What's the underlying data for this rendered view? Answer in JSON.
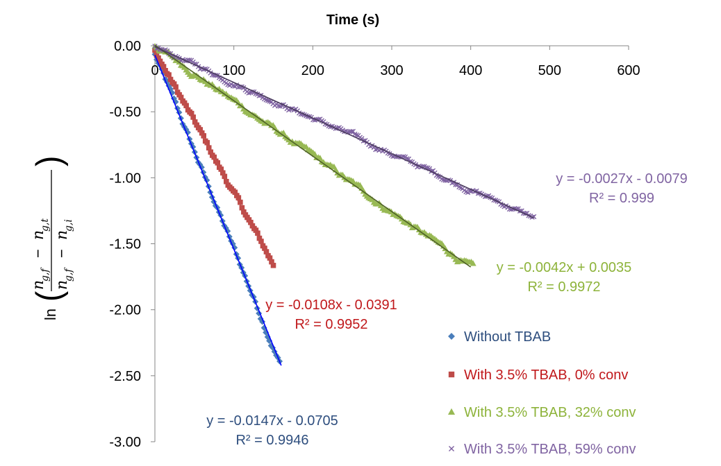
{
  "chart_data": {
    "type": "scatter",
    "title": "",
    "xlabel": "Time (s)",
    "ylabel": "ln((n_g,f − n_g,t)/(n_g,f − n_g,i))",
    "ylabel_math": {
      "func": "ln",
      "num_a": "n",
      "num_a_sub": "g,f",
      "num_op": "−",
      "num_b": "n",
      "num_b_sub": "g,t",
      "den_a": "n",
      "den_a_sub": "g,f",
      "den_op": "−",
      "den_b": "n",
      "den_b_sub": "g,i"
    },
    "x_axis": {
      "min": 0,
      "max": 600,
      "ticks": [
        0,
        100,
        200,
        300,
        400,
        500,
        600
      ],
      "tick_labels": [
        "0",
        "100",
        "200",
        "300",
        "400",
        "500",
        "600"
      ],
      "position": "top"
    },
    "y_axis": {
      "min": -3.0,
      "max": 0.0,
      "ticks": [
        0,
        -0.5,
        -1,
        -1.5,
        -2,
        -2.5,
        -3
      ],
      "tick_labels": [
        "0.00",
        "-0.50",
        "-1.00",
        "-1.50",
        "-2.00",
        "-2.50",
        "-3.00"
      ]
    },
    "grid": false,
    "legend_position": "bottom-right",
    "series": [
      {
        "name": "Without TBAB",
        "marker": "diamond",
        "color": "#4a7ebb",
        "x_range": [
          0,
          158
        ],
        "slope": -0.0147,
        "intercept": -0.0705,
        "noise": 0.035,
        "trendline": {
          "x": [
            0,
            160
          ],
          "color": "#0000ff",
          "equation": "y = -0.0147x - 0.0705",
          "r2": "R² = 0.9946",
          "label_color": "#2e4e7e"
        }
      },
      {
        "name": "With 3.5% TBAB, 0% conv",
        "marker": "square",
        "color": "#be4b48",
        "x_range": [
          0,
          150
        ],
        "slope": -0.0108,
        "intercept": -0.0391,
        "noise": 0.03,
        "trendline": {
          "x": [
            0,
            150
          ],
          "color": "#c0504d",
          "equation": "y = -0.0108x - 0.0391",
          "r2": "R² = 0.9952",
          "label_color": "#c0181b"
        }
      },
      {
        "name": "With 3.5% TBAB, 32% conv",
        "marker": "triangle",
        "color": "#98b954",
        "x_range": [
          0,
          403
        ],
        "slope": -0.0042,
        "intercept": 0.0035,
        "noise": 0.03,
        "trendline": {
          "x": [
            0,
            400
          ],
          "color": "#4f6228",
          "equation": "y = -0.0042x + 0.0035",
          "r2": "R² = 0.9972",
          "label_color": "#8db33a"
        }
      },
      {
        "name": "With 3.5% TBAB, 59% conv",
        "marker": "x",
        "color": "#7d60a0",
        "x_range": [
          0,
          480
        ],
        "slope": -0.0027,
        "intercept": -0.0079,
        "noise": 0.025,
        "trendline": {
          "x": [
            0,
            480
          ],
          "color": "#4b3c5e",
          "equation": "y = -0.0027x - 0.0079",
          "r2": "R² = 0.999",
          "label_color": "#8064a2"
        }
      }
    ]
  }
}
